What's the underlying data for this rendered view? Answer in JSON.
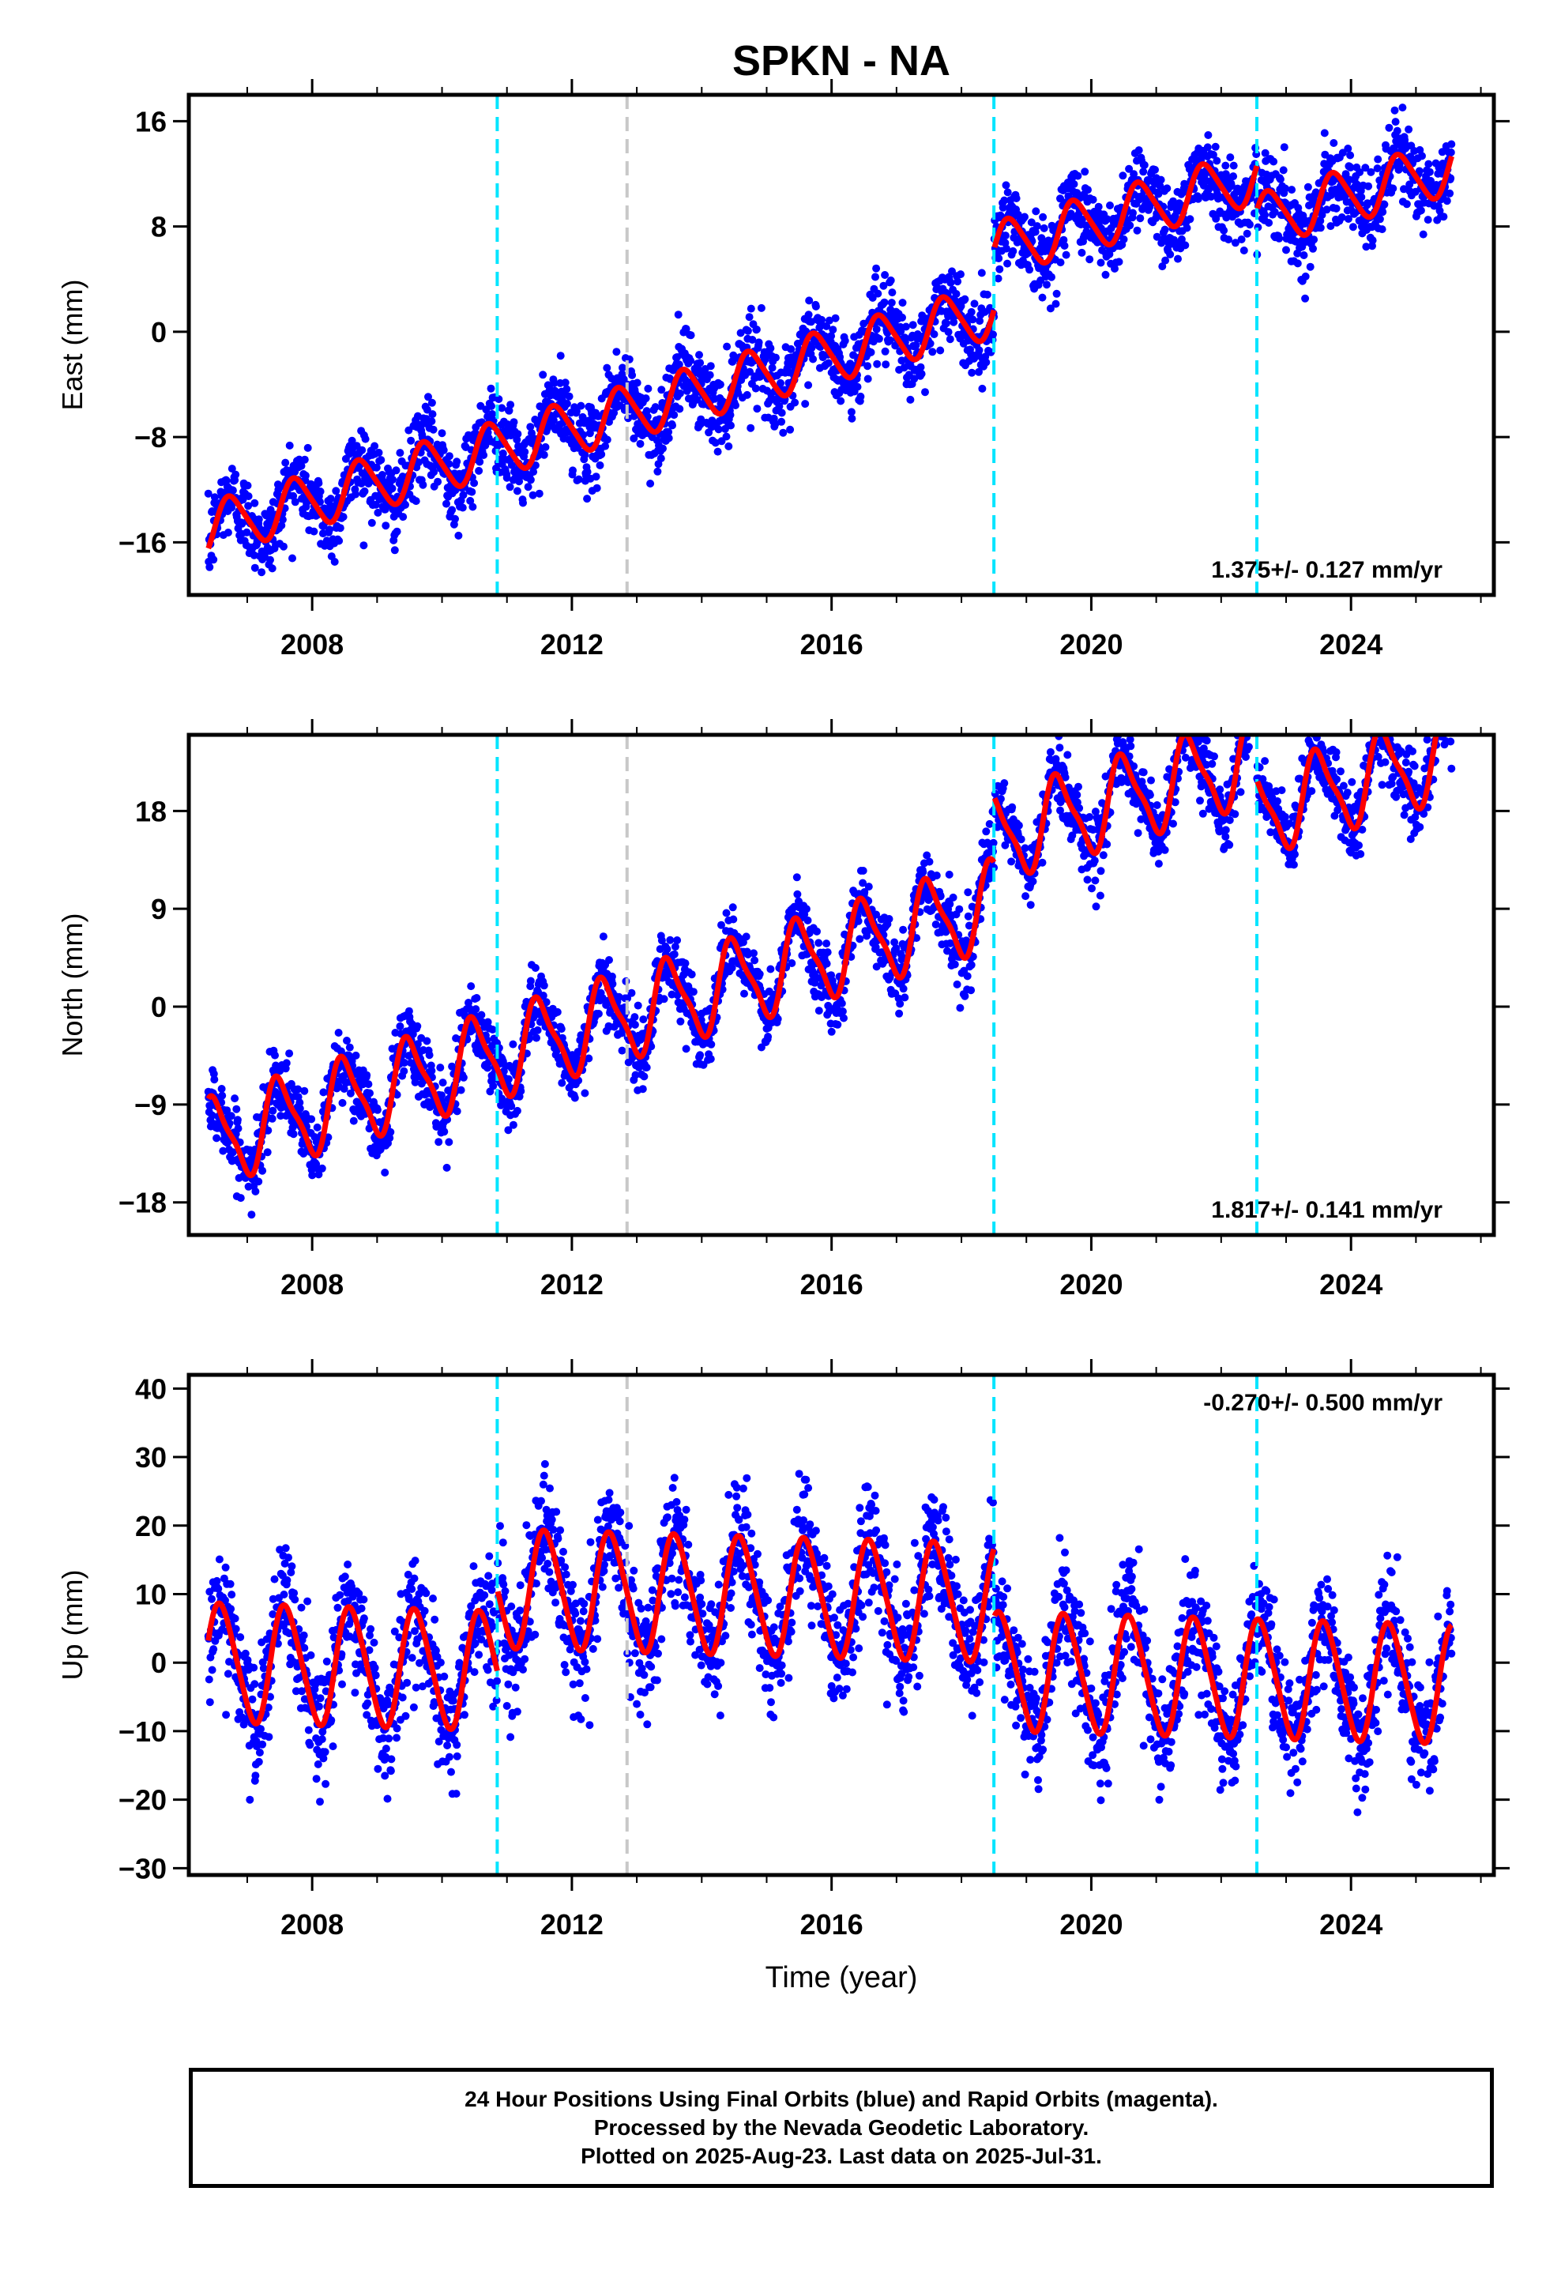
{
  "title": "SPKN - NA",
  "xlabel": "Time (year)",
  "footer": {
    "line1": "24 Hour Positions Using Final Orbits (blue) and Rapid Orbits (magenta).",
    "line2": "Processed by the Nevada Geodetic Laboratory.",
    "line3": "Plotted on 2025-Aug-23. Last data on 2025-Jul-31."
  },
  "colors": {
    "data": "#0000ff",
    "model": "#ff0000",
    "offset_equipment": "#00e5ff",
    "offset_other": "#c8c8c8"
  },
  "chart_data": [
    {
      "type": "scatter",
      "ylabel": "East (mm)",
      "rate": "1.375+/- 0.127 mm/yr",
      "rate_position": "bottom-right",
      "xlim": [
        2006.1,
        2026.2
      ],
      "ylim": [
        -20,
        18
      ],
      "yticks": [
        16,
        8,
        0,
        -8,
        -16
      ],
      "ytick_labels": [
        "16",
        "8",
        "0",
        "−8",
        "−16"
      ],
      "xticks": [
        2008,
        2012,
        2016,
        2020,
        2024
      ],
      "xtick_labels": [
        "2008",
        "2012",
        "2016",
        "2020",
        "2024"
      ],
      "offsets_equipment": [
        2010.85,
        2018.5,
        2022.55
      ],
      "offsets_other": [
        2012.85
      ],
      "data_span": [
        2006.4,
        2025.55
      ],
      "model": {
        "ref_year": 2006.4,
        "intercept": -15.0,
        "rate": 1.375,
        "steps": [
          [
            2018.5,
            4.6
          ],
          [
            2022.55,
            -3.4
          ]
        ],
        "annual_amp": 2.0,
        "annual_phase": 0.5,
        "semiannual_amp": 0.3,
        "scatter": 1.5
      },
      "series": [
        {
          "name": "24 Hour Positions Using Final Orbits (blue)"
        },
        {
          "name": "model"
        }
      ]
    },
    {
      "type": "scatter",
      "ylabel": "North (mm)",
      "rate": "1.817+/- 0.141 mm/yr",
      "rate_position": "bottom-right",
      "xlim": [
        2006.1,
        2026.2
      ],
      "ylim": [
        -21,
        25
      ],
      "yticks": [
        18,
        9,
        0,
        -9,
        -18
      ],
      "ytick_labels": [
        "18",
        "9",
        "0",
        "−9",
        "−18"
      ],
      "xticks": [
        2008,
        2012,
        2016,
        2020,
        2024
      ],
      "xtick_labels": [
        "2008",
        "2012",
        "2016",
        "2020",
        "2024"
      ],
      "offsets_equipment": [
        2010.85,
        2018.5,
        2022.55
      ],
      "offsets_other": [
        2012.85
      ],
      "data_span": [
        2006.4,
        2025.55
      ],
      "model": {
        "ref_year": 2006.4,
        "intercept": -12.5,
        "rate": 1.817,
        "steps": [
          [
            2018.5,
            6.0
          ],
          [
            2022.55,
            -5.0
          ]
        ],
        "annual_amp": 3.8,
        "annual_phase": 0.25,
        "semiannual_amp": 1.0,
        "scatter": 1.6
      },
      "series": [
        {
          "name": "24 Hour Positions Using Final Orbits (blue)"
        },
        {
          "name": "model"
        }
      ]
    },
    {
      "type": "scatter",
      "ylabel": "Up (mm)",
      "rate": "-0.270+/- 0.500 mm/yr",
      "rate_position": "top-right",
      "xlim": [
        2006.1,
        2026.2
      ],
      "ylim": [
        -31,
        42
      ],
      "yticks": [
        40,
        30,
        20,
        10,
        0,
        -10,
        -20,
        -30
      ],
      "ytick_labels": [
        "40",
        "30",
        "20",
        "10",
        "0",
        "−10",
        "−20",
        "−30"
      ],
      "xticks": [
        2008,
        2012,
        2016,
        2020,
        2024
      ],
      "xtick_labels": [
        "2008",
        "2012",
        "2016",
        "2020",
        "2024"
      ],
      "offsets_equipment": [
        2010.85,
        2018.5,
        2022.55
      ],
      "offsets_other": [
        2012.85
      ],
      "data_span": [
        2006.4,
        2025.55
      ],
      "model": {
        "ref_year": 2006.4,
        "intercept": 0.0,
        "rate": -0.27,
        "steps": [
          [
            2010.85,
            12.0
          ],
          [
            2018.5,
            -10.0
          ]
        ],
        "annual_amp": 8.5,
        "annual_phase": 0.35,
        "semiannual_amp": 1.0,
        "scatter": 4.2
      },
      "series": [
        {
          "name": "24 Hour Positions Using Final Orbits (blue)"
        },
        {
          "name": "model"
        }
      ]
    }
  ]
}
